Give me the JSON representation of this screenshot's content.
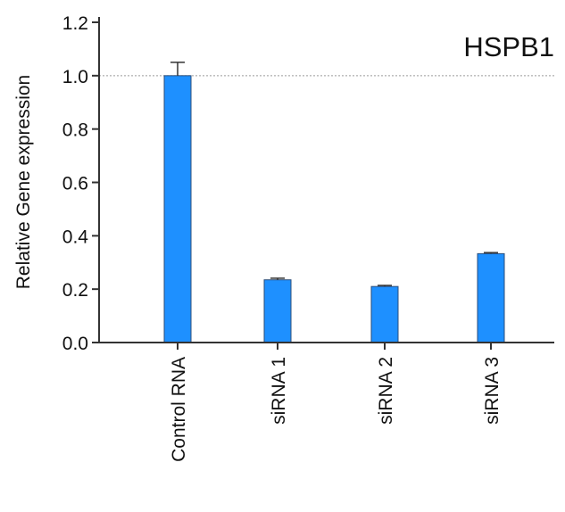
{
  "chart_data": {
    "type": "bar",
    "title": "HSPB1",
    "ylabel": "Relative Gene expression",
    "xlabel": "",
    "categories": [
      "Control RNA",
      "siRNA 1",
      "siRNA 2",
      "siRNA 3"
    ],
    "values": [
      1.0,
      0.235,
      0.21,
      0.333
    ],
    "errors": [
      0.05,
      0.006,
      0.004,
      0.004
    ],
    "ylim": [
      0.0,
      1.2
    ],
    "yticks": [
      "0.0",
      "0.2",
      "0.4",
      "0.6",
      "0.8",
      "1.0",
      "1.2"
    ],
    "reference_line": 1.0,
    "bar_color": "#1e90ff",
    "grid": false,
    "legend": "none"
  }
}
